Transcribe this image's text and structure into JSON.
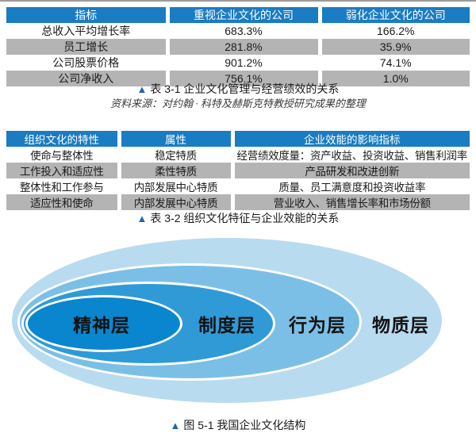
{
  "colors": {
    "table_header_bg": "#1a7cc2",
    "table_row_alt_bg": "#b4b4b4",
    "caption_marker_blue": "#2166ae",
    "page_topline": "#9b9b9b"
  },
  "table1": {
    "headers": [
      "指标",
      "重视企业文化的公司",
      "弱化企业文化的公司"
    ],
    "rows": [
      [
        "总收入平均增长率",
        "683.3%",
        "166.2%"
      ],
      [
        "员工增长",
        "281.8%",
        "35.9%"
      ],
      [
        "公司股票价格",
        "901.2%",
        "74.1%"
      ],
      [
        "公司净收入",
        "756.1%",
        "1.0%"
      ]
    ],
    "caption_marker": "▲",
    "caption": "表 3-1 企业文化管理与经营绩效的关系",
    "source": "资料来源：对约翰 · 科特及赫斯克特教授研究成果的整理"
  },
  "table2": {
    "headers": [
      "组织文化的特性",
      "属性",
      "企业效能的影响指标"
    ],
    "rows": [
      [
        "使命与整体性",
        "稳定特质",
        "经营绩效度量：资产收益、投资收益、销售利润率"
      ],
      [
        "工作投入和适应性",
        "柔性特质",
        "产品研发和改进创新"
      ],
      [
        "整体性和工作参与",
        "内部发展中心特质",
        "质量、员工满意度和投资收益率"
      ],
      [
        "适应性和使命",
        "内部发展中心特质",
        "营业收入、销售增长率和市场份额"
      ]
    ],
    "caption_marker": "▲",
    "caption": "表 3-2 组织文化特征与企业效能的关系"
  },
  "diagram": {
    "layers": [
      {
        "id": "material",
        "label": "物质层",
        "color": "#b9dbef"
      },
      {
        "id": "behavior",
        "label": "行为层",
        "color": "#7cbfe6"
      },
      {
        "id": "system",
        "label": "制度层",
        "color": "#2f9ad6"
      },
      {
        "id": "spirit",
        "label": "精神层",
        "color": "#0a86ce"
      }
    ],
    "caption_marker": "▲",
    "caption": "图 5-1 我国企业文化结构"
  }
}
